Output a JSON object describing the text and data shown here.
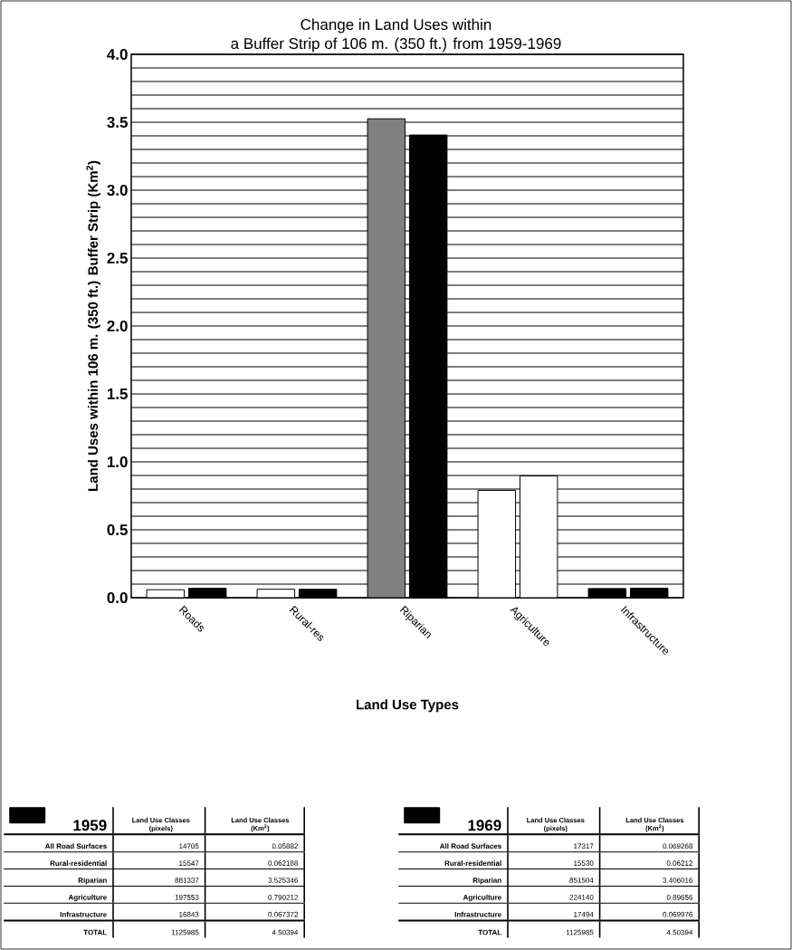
{
  "chart_data": [
    {
      "type": "bar",
      "title": "Change in Land Uses within\na Buffer Strip of 106 m. (350 ft.) from 1959-1969",
      "xlabel": "Land Use Types",
      "ylabel": "Land Uses within 106 m. (350 ft.) Buffer Strip (Km$^{2}$)",
      "categories": [
        "Roads",
        "Rural-res",
        "Riparian",
        "Agriculture",
        "Infrastructure"
      ],
      "series": [
        {
          "colors": [
            "#ffffff",
            "#ffffff",
            "#808080",
            "#ffffff",
            "#000000"
          ],
          "values": [
            0.05882,
            0.062188,
            3.525346,
            0.790212,
            0.067372
          ]
        },
        {
          "colors": [
            "#000000",
            "#000000",
            "#000000",
            "#ffffff",
            "#000000"
          ],
          "values": [
            0.069268,
            0.06212,
            3.406016,
            0.89656,
            0.069976
          ]
        }
      ],
      "ylim": [
        0,
        4
      ],
      "yticks": [
        {
          "value": 0,
          "label": "0.0"
        },
        {
          "value": 0.1,
          "label": null
        },
        {
          "value": 0.2,
          "label": null
        },
        {
          "value": 0.3,
          "label": null
        },
        {
          "value": 0.4,
          "label": null
        },
        {
          "value": 0.5,
          "label": "0.5"
        },
        {
          "value": 0.6,
          "label": null
        },
        {
          "value": 0.7,
          "label": null
        },
        {
          "value": 0.8,
          "label": null
        },
        {
          "value": 0.9,
          "label": null
        },
        {
          "value": 1,
          "label": "1.0"
        },
        {
          "value": 1.1,
          "label": null
        },
        {
          "value": 1.2,
          "label": null
        },
        {
          "value": 1.3,
          "label": null
        },
        {
          "value": 1.4,
          "label": null
        },
        {
          "value": 1.5,
          "label": "1.5"
        },
        {
          "value": 1.6,
          "label": null
        },
        {
          "value": 1.7,
          "label": null
        },
        {
          "value": 1.8,
          "label": null
        },
        {
          "value": 1.9,
          "label": null
        },
        {
          "value": 2,
          "label": "2.0"
        },
        {
          "value": 2.1,
          "label": null
        },
        {
          "value": 2.2,
          "label": null
        },
        {
          "value": 2.3,
          "label": null
        },
        {
          "value": 2.4,
          "label": null
        },
        {
          "value": 2.5,
          "label": "2.5"
        },
        {
          "value": 2.6,
          "label": null
        },
        {
          "value": 2.7,
          "label": null
        },
        {
          "value": 2.8,
          "label": null
        },
        {
          "value": 2.9,
          "label": null
        },
        {
          "value": 3,
          "label": "3.0"
        },
        {
          "value": 3.1,
          "label": null
        },
        {
          "value": 3.2,
          "label": null
        },
        {
          "value": 3.3,
          "label": null
        },
        {
          "value": 3.4,
          "label": null
        },
        {
          "value": 3.5,
          "label": "3.5"
        },
        {
          "value": 3.6,
          "label": null
        },
        {
          "value": 3.7,
          "label": null
        },
        {
          "value": 3.8,
          "label": null
        },
        {
          "value": 3.9,
          "label": null
        },
        {
          "value": 4,
          "label": "4.0"
        }
      ],
      "grid": "y"
    },
    {
      "type": "other",
      "title": "1959",
      "color": "#000000",
      "data_labels": true,
      "categories": [
        "All Road Surfaces",
        "Rural-residential",
        "Riparian",
        "Agriculture",
        "Infrastructure",
        "TOTAL"
      ],
      "series": [
        {
          "name": "Land Use Classes (pixels)",
          "values": [
            14705,
            15547,
            881337,
            197553,
            16843,
            1125985
          ]
        },
        {
          "name": "Land Use Classes (Km$^{2}$)",
          "values": [
            0.05882,
            0.062188,
            3.525346,
            0.790212,
            0.067372,
            4.50394
          ]
        }
      ]
    },
    {
      "type": "other",
      "title": "1969",
      "color": "#000000",
      "data_labels": true,
      "categories": [
        "All Road Surfaces",
        "Rural-residential",
        "Riparian",
        "Agriculture",
        "Infrastructure",
        "TOTAL"
      ],
      "series": [
        {
          "name": "Land Use Classes (pixels)",
          "values": [
            17317,
            15530,
            851504,
            224140,
            17494,
            1125985
          ]
        },
        {
          "name": "Land Use Classes (Km$^{2}$)",
          "values": [
            0.069268,
            0.06212,
            3.406016,
            0.89656,
            0.069976,
            4.50394
          ]
        }
      ]
    }
  ]
}
